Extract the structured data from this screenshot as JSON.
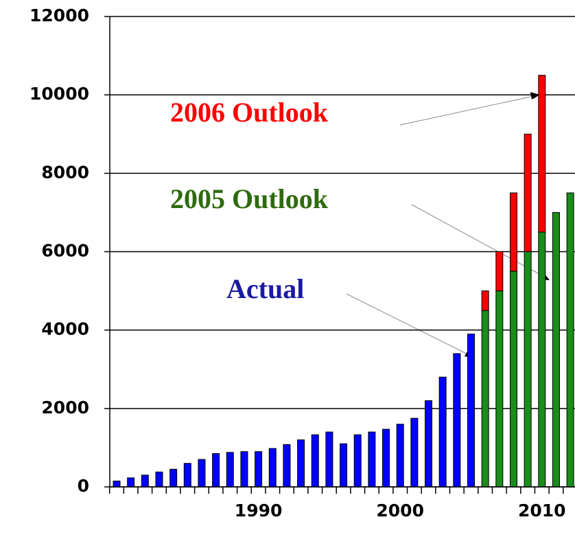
{
  "chart_data": {
    "type": "bar",
    "categories": [
      null,
      null,
      null,
      null,
      null,
      null,
      null,
      null,
      null,
      null,
      "1990",
      null,
      null,
      null,
      null,
      null,
      null,
      null,
      null,
      null,
      "2000",
      null,
      null,
      null,
      null,
      null,
      null,
      null,
      null,
      null,
      "2010",
      null,
      null
    ],
    "series": [
      {
        "name": "Actual",
        "color": "#0000ff",
        "values": [
          150,
          230,
          300,
          380,
          450,
          600,
          700,
          850,
          880,
          900,
          900,
          980,
          1080,
          1200,
          1330,
          1400,
          1100,
          1330,
          1400,
          1470,
          1600,
          1750,
          2200,
          2800,
          3400,
          3900,
          null,
          null,
          null,
          null,
          null,
          null,
          null
        ]
      },
      {
        "name": "2005 Outlook",
        "color": "#1a8c1a",
        "values": [
          null,
          null,
          null,
          null,
          null,
          null,
          null,
          null,
          null,
          null,
          null,
          null,
          null,
          null,
          null,
          null,
          null,
          null,
          null,
          null,
          null,
          null,
          null,
          null,
          null,
          null,
          4500,
          5000,
          5500,
          6000,
          6500,
          7000,
          7500
        ]
      },
      {
        "name": "2006 Outlook",
        "color": "#ff0000",
        "values": [
          null,
          null,
          null,
          null,
          null,
          null,
          null,
          null,
          null,
          null,
          null,
          null,
          null,
          null,
          null,
          null,
          null,
          null,
          null,
          null,
          null,
          null,
          null,
          null,
          null,
          null,
          500,
          1000,
          2000,
          3000,
          4000,
          null,
          null
        ]
      }
    ],
    "ylim": [
      0,
      12000
    ],
    "yticks": [
      0,
      2000,
      4000,
      6000,
      8000,
      10000,
      12000
    ],
    "grid": true
  }
}
